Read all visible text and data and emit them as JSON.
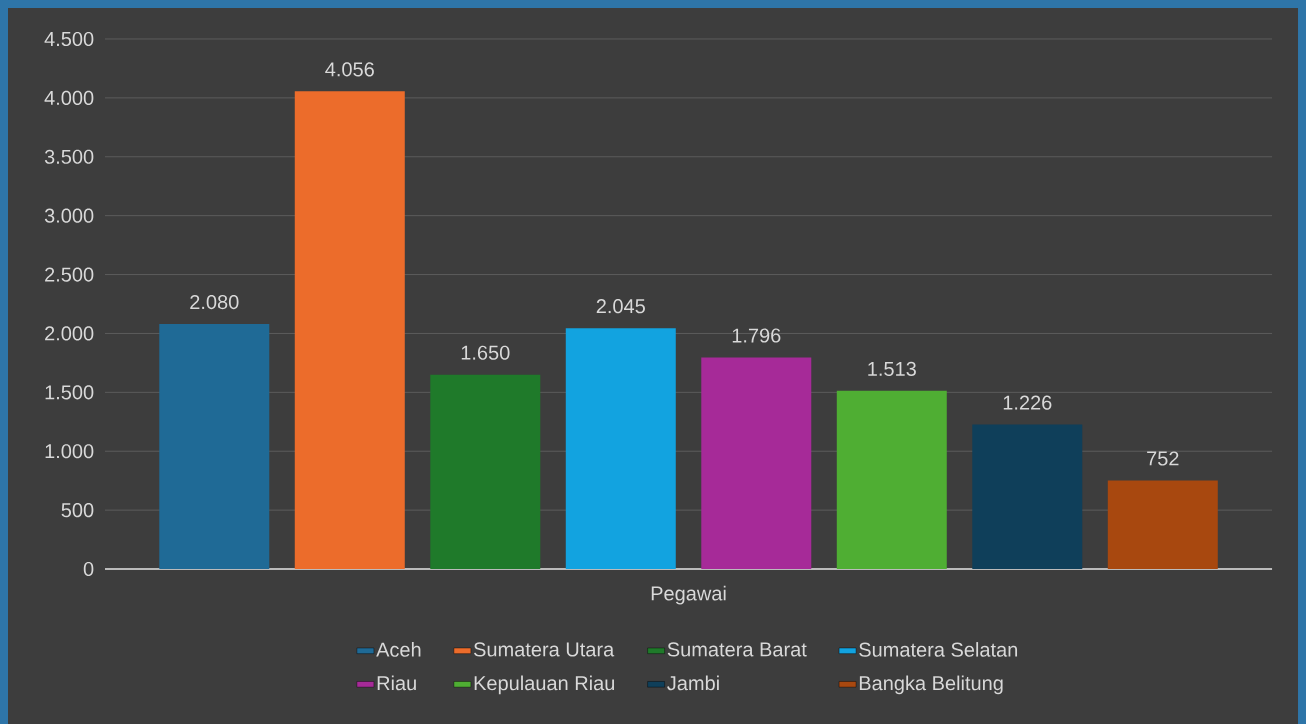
{
  "chart_data": {
    "type": "bar",
    "categories": [
      "Pegawai"
    ],
    "series": [
      {
        "name": "Aceh",
        "color": "#1f6a96",
        "values": [
          2080
        ],
        "value_labels": [
          "2.080"
        ]
      },
      {
        "name": "Sumatera Utara",
        "color": "#ec6c2b",
        "values": [
          4056
        ],
        "value_labels": [
          "4.056"
        ]
      },
      {
        "name": "Sumatera Barat",
        "color": "#1f7a2a",
        "values": [
          1650
        ],
        "value_labels": [
          "1.650"
        ]
      },
      {
        "name": "Sumatera Selatan",
        "color": "#12a3e0",
        "values": [
          2045
        ],
        "value_labels": [
          "2.045"
        ]
      },
      {
        "name": "Riau",
        "color": "#a62a98",
        "values": [
          1796
        ],
        "value_labels": [
          "1.796"
        ]
      },
      {
        "name": "Kepulauan Riau",
        "color": "#4fae33",
        "values": [
          1513
        ],
        "value_labels": [
          "1.513"
        ]
      },
      {
        "name": "Jambi",
        "color": "#0f3f5a",
        "values": [
          1226
        ],
        "value_labels": [
          "1.226"
        ]
      },
      {
        "name": "Bangka Belitung",
        "color": "#a8480f",
        "values": [
          752
        ],
        "value_labels": [
          "752"
        ]
      }
    ],
    "ylim": [
      0,
      4500
    ],
    "yticks": [
      0,
      500,
      {
        "value": 1000,
        "label": "1.000"
      },
      {
        "value": 1500,
        "label": "1.500"
      },
      {
        "value": 2000,
        "label": "2.000"
      },
      {
        "value": 2500,
        "label": "2.500"
      },
      {
        "value": 3000,
        "label": "3.000"
      },
      {
        "value": 3500,
        "label": "3.500"
      },
      {
        "value": 4000,
        "label": "4.000"
      },
      {
        "value": 4500,
        "label": "4.500"
      }
    ],
    "grid": "y",
    "legend": "bottom"
  }
}
